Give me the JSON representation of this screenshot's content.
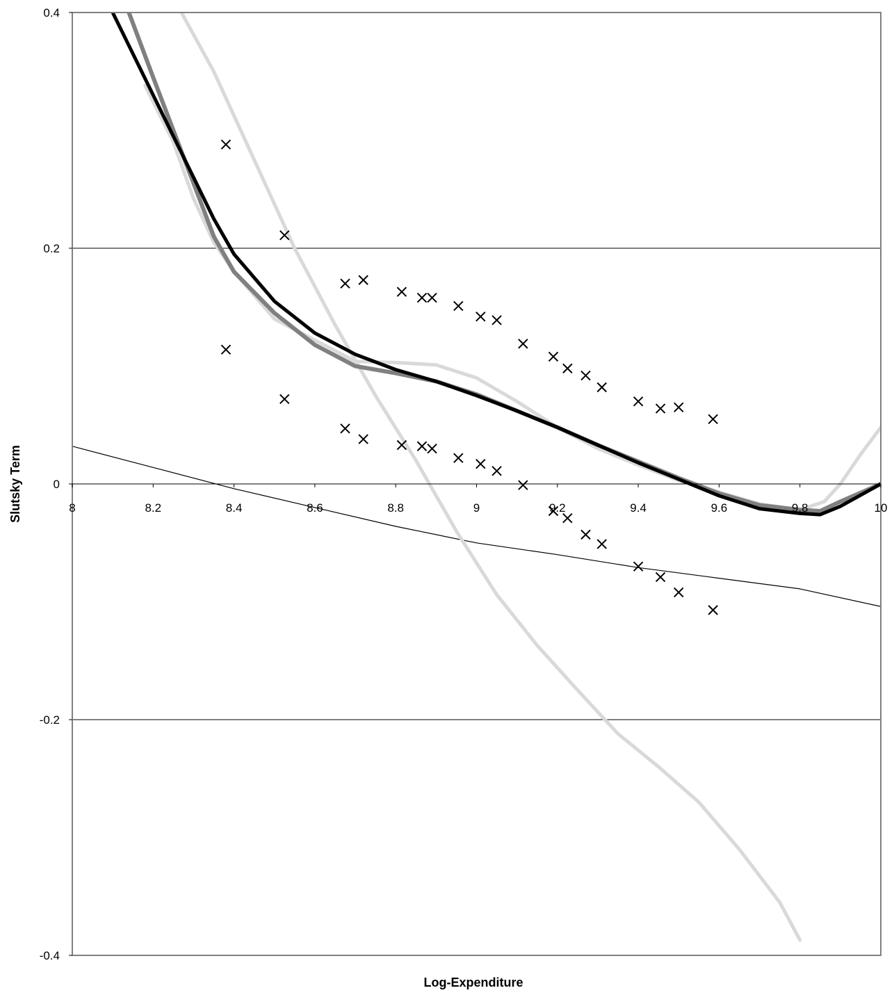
{
  "chart_data": {
    "type": "line",
    "title": "",
    "xlabel": "Log-Expenditure",
    "ylabel": "Slutsky Term",
    "xlim": [
      8,
      10
    ],
    "ylim": [
      -0.4,
      0.4
    ],
    "x_ticks": [
      8,
      8.2,
      8.4,
      8.6,
      8.8,
      9,
      9.2,
      9.4,
      9.6,
      9.8,
      10
    ],
    "x_tick_labels": [
      "8",
      "8.2",
      "8.4",
      "8.6",
      "8.8",
      "9",
      "9.2",
      "9.4",
      "9.6",
      "9.8",
      "10"
    ],
    "y_ticks": [
      -0.4,
      -0.2,
      0,
      0.2,
      0.4
    ],
    "y_tick_labels": [
      "-0.4",
      "-0.2",
      "0",
      "0.2",
      "0.4"
    ],
    "grid": "horizontal",
    "legend": "none",
    "series": [
      {
        "style": "thin-black",
        "color": "#000000",
        "x": [
          8.0,
          8.2,
          8.4,
          8.6,
          8.8,
          9.0,
          9.2,
          9.4,
          9.6,
          9.8,
          10.0
        ],
        "y": [
          0.032,
          0.014,
          -0.004,
          -0.02,
          -0.036,
          -0.05,
          -0.06,
          -0.071,
          -0.08,
          -0.089,
          -0.104
        ]
      },
      {
        "style": "light-gray-thick",
        "color": "#d9d9d9",
        "x": [
          8.27,
          8.35,
          8.45,
          8.55,
          8.65,
          8.75,
          8.85,
          8.95,
          9.05,
          9.15,
          9.25,
          9.35,
          9.45,
          9.55,
          9.65,
          9.75,
          9.8
        ],
        "y": [
          0.4,
          0.35,
          0.275,
          0.2,
          0.135,
          0.075,
          0.02,
          -0.04,
          -0.094,
          -0.137,
          -0.175,
          -0.212,
          -0.24,
          -0.27,
          -0.31,
          -0.355,
          -0.387
        ]
      },
      {
        "style": "light-gray-thick",
        "color": "#d9d9d9",
        "x": [
          8.18,
          8.25,
          8.3,
          8.35,
          8.4,
          8.5,
          8.6,
          8.7,
          8.8,
          8.9,
          9.0,
          9.1,
          9.2,
          9.3,
          9.4,
          9.5,
          9.6,
          9.7,
          9.8,
          9.86,
          9.9,
          9.95,
          10.0
        ],
        "y": [
          0.338,
          0.29,
          0.242,
          0.205,
          0.18,
          0.14,
          0.122,
          0.104,
          0.103,
          0.101,
          0.09,
          0.07,
          0.048,
          0.03,
          0.016,
          0.003,
          -0.007,
          -0.017,
          -0.022,
          -0.015,
          0.0,
          0.025,
          0.048
        ]
      },
      {
        "style": "dark-gray-thick",
        "color": "#808080",
        "x": [
          8.14,
          8.2,
          8.25,
          8.3,
          8.35,
          8.4,
          8.5,
          8.6,
          8.7,
          8.8,
          8.9,
          9.0,
          9.1,
          9.2,
          9.3,
          9.4,
          9.5,
          9.6,
          9.7,
          9.8,
          9.85,
          9.9,
          10.0
        ],
        "y": [
          0.4,
          0.345,
          0.3,
          0.255,
          0.21,
          0.18,
          0.145,
          0.118,
          0.1,
          0.094,
          0.087,
          0.076,
          0.062,
          0.048,
          0.033,
          0.019,
          0.005,
          -0.008,
          -0.018,
          -0.022,
          -0.023,
          -0.015,
          0.0
        ]
      },
      {
        "style": "black-thick",
        "color": "#000000",
        "x": [
          8.1,
          8.15,
          8.2,
          8.25,
          8.3,
          8.35,
          8.4,
          8.5,
          8.6,
          8.7,
          8.8,
          8.9,
          9.0,
          9.1,
          9.2,
          9.3,
          9.4,
          9.5,
          9.6,
          9.7,
          9.8,
          9.85,
          9.9,
          10.0
        ],
        "y": [
          0.4,
          0.365,
          0.33,
          0.295,
          0.26,
          0.225,
          0.195,
          0.155,
          0.128,
          0.11,
          0.097,
          0.087,
          0.075,
          0.062,
          0.048,
          0.033,
          0.018,
          0.004,
          -0.01,
          -0.021,
          -0.025,
          -0.026,
          -0.019,
          0.0
        ]
      }
    ],
    "markers_upper": {
      "marker": "x",
      "x": [
        8.38,
        8.525,
        8.675,
        8.72,
        8.815,
        8.865,
        8.89,
        8.955,
        9.01,
        9.05,
        9.115,
        9.19,
        9.225,
        9.27,
        9.31,
        9.4,
        9.455,
        9.5,
        9.585
      ],
      "y": [
        0.288,
        0.211,
        0.17,
        0.173,
        0.163,
        0.158,
        0.158,
        0.151,
        0.142,
        0.139,
        0.119,
        0.108,
        0.098,
        0.092,
        0.082,
        0.07,
        0.064,
        0.065,
        0.055
      ]
    },
    "markers_lower": {
      "marker": "x",
      "x": [
        8.38,
        8.525,
        8.675,
        8.72,
        8.815,
        8.865,
        8.89,
        8.955,
        9.01,
        9.05,
        9.115,
        9.19,
        9.225,
        9.27,
        9.31,
        9.4,
        9.455,
        9.5,
        9.585
      ],
      "y": [
        0.114,
        0.072,
        0.047,
        0.038,
        0.033,
        0.032,
        0.03,
        0.022,
        0.017,
        0.011,
        -0.001,
        -0.023,
        -0.029,
        -0.043,
        -0.051,
        -0.07,
        -0.079,
        -0.092,
        -0.107
      ]
    }
  }
}
